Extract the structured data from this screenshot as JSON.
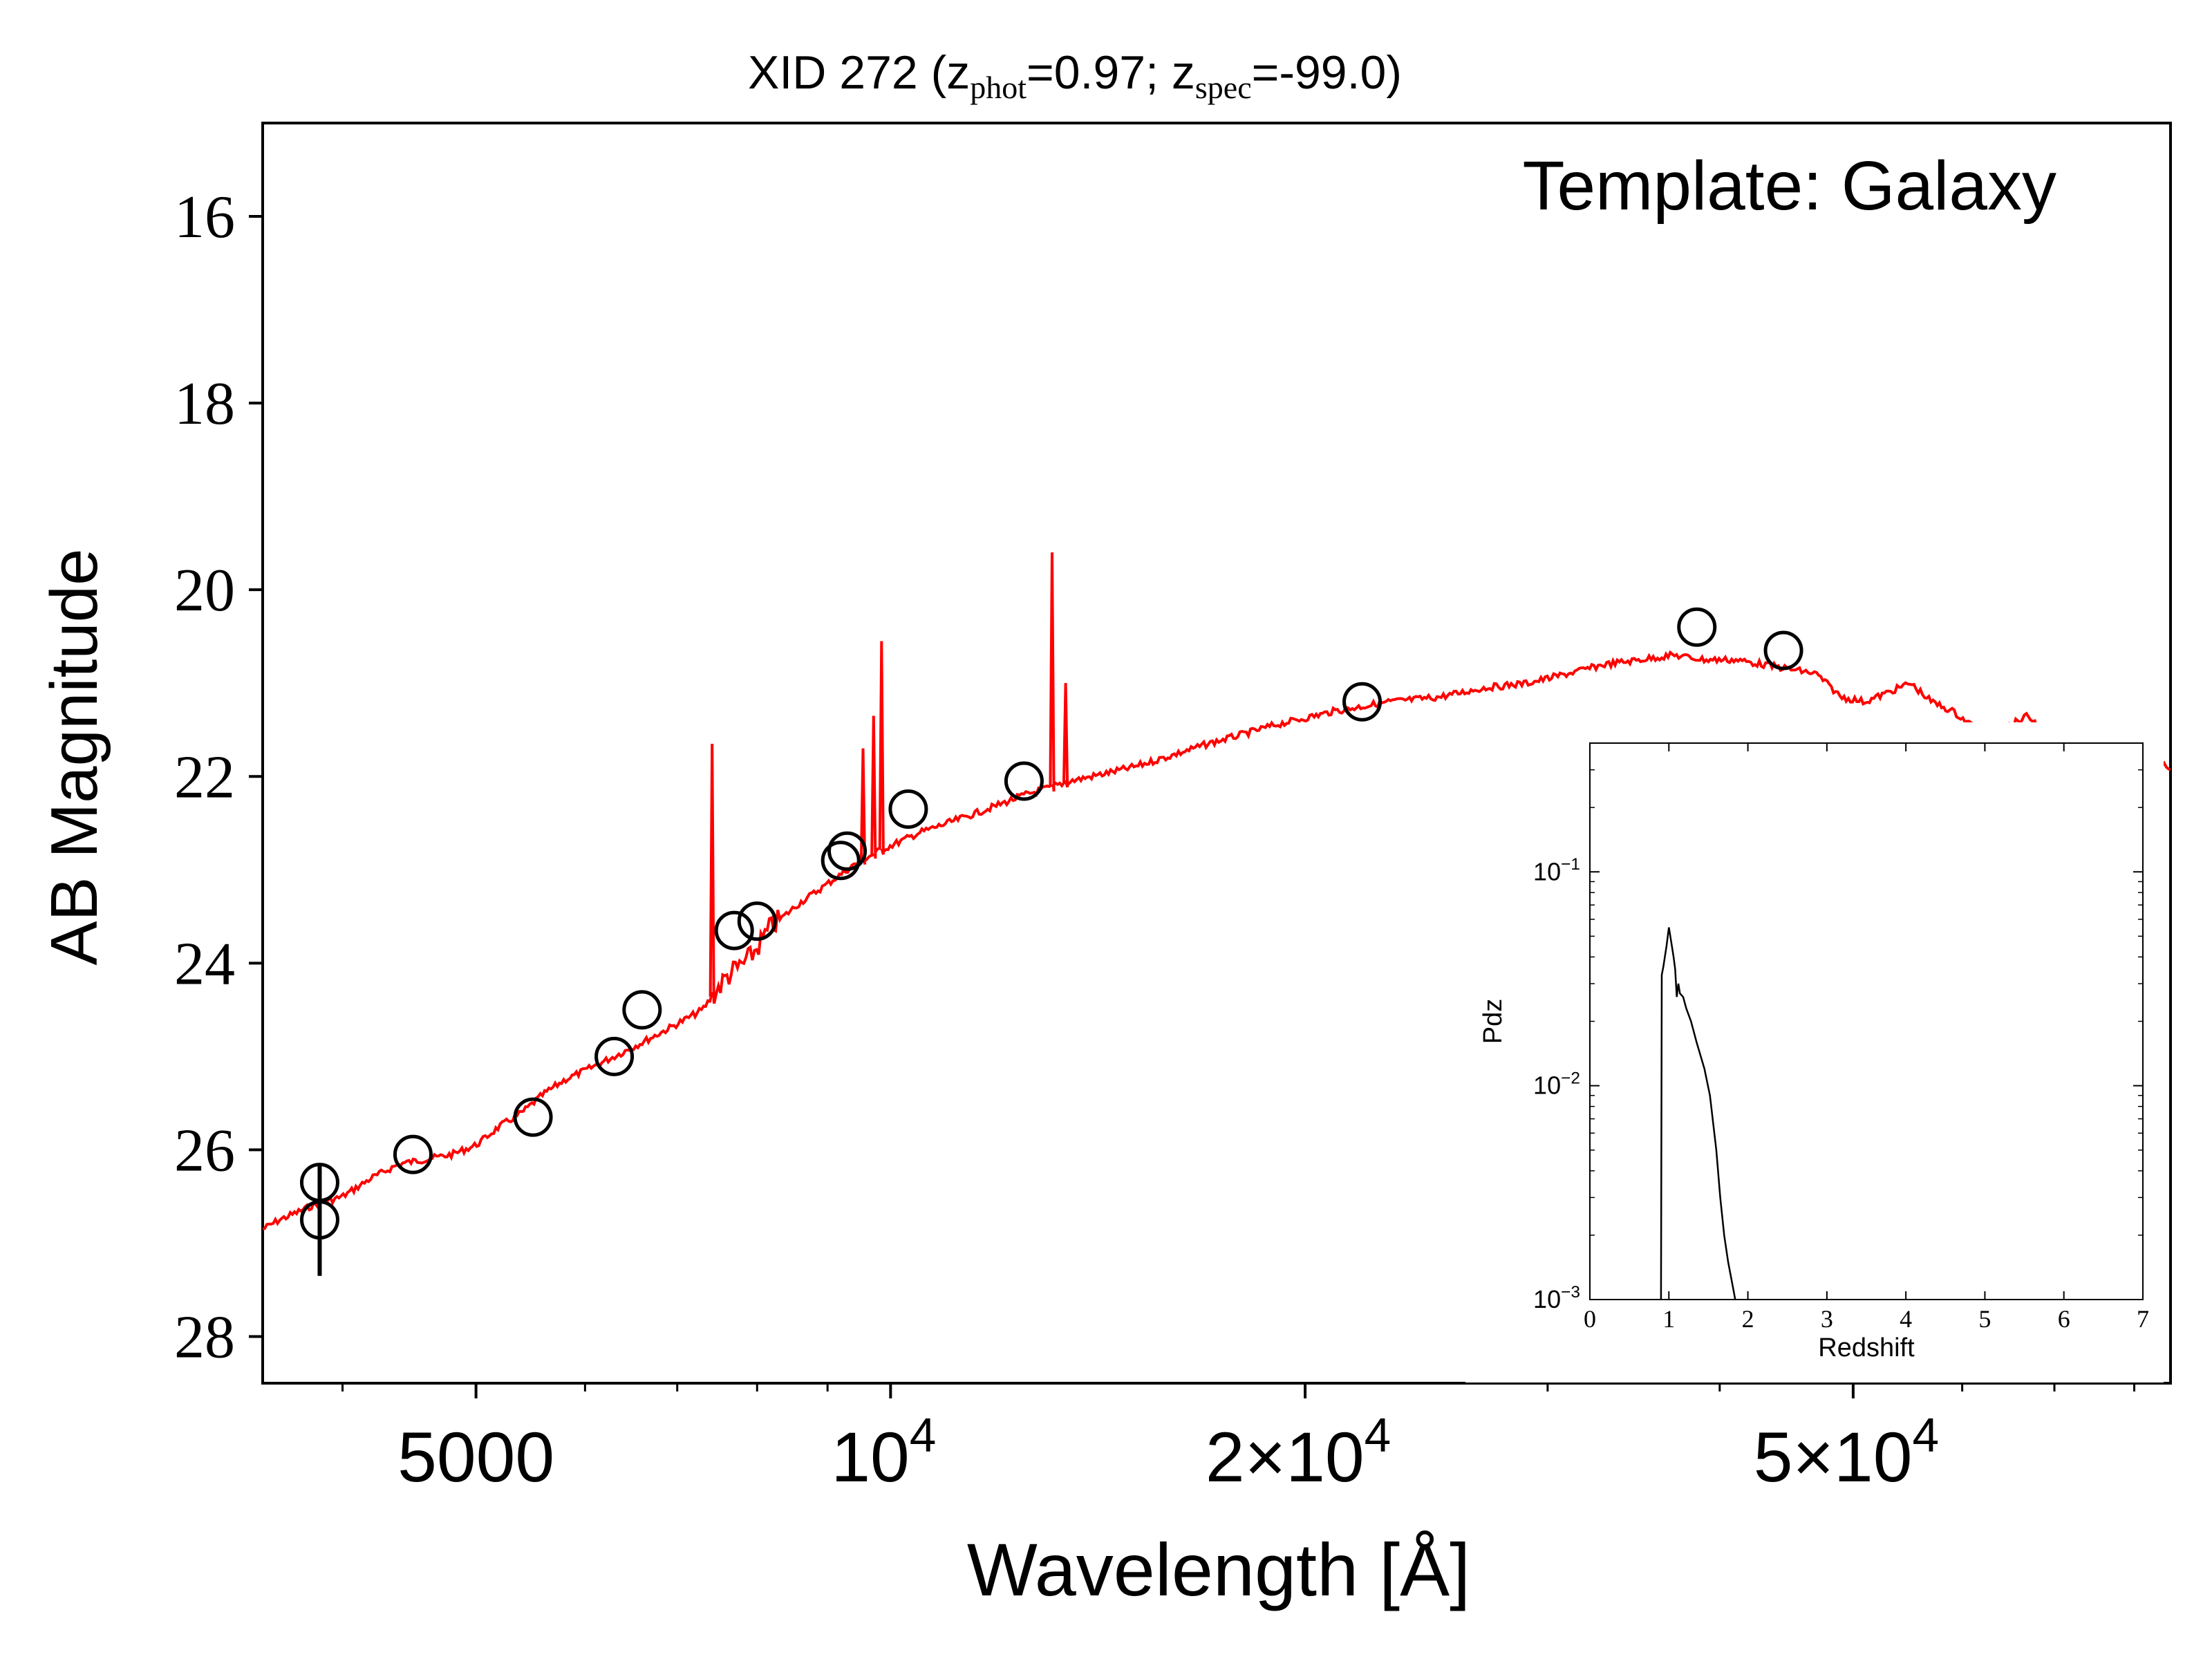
{
  "chart_data": [
    {
      "type": "scatter",
      "title_parts": [
        "XID 272 (z",
        "phot",
        "=0.97; z",
        "spec",
        "=-99.0)"
      ],
      "annotation": "Template: Galaxy",
      "xlabel": "Wavelength [Å]",
      "ylabel": "AB Magnitude",
      "x_scale": "log",
      "xlim": [
        3500,
        85000
      ],
      "ylim": [
        28.5,
        15.0
      ],
      "y_inverted": true,
      "x_ticks": [
        {
          "value": 5000,
          "label": "5000"
        },
        {
          "value": 10000,
          "base": "10",
          "exp": "4"
        },
        {
          "value": 20000,
          "base": "2×10",
          "exp": "4"
        },
        {
          "value": 50000,
          "base": "5×10",
          "exp": "4"
        }
      ],
      "y_ticks": [
        16,
        18,
        20,
        22,
        24,
        26,
        28
      ],
      "colors": {
        "template": "#ff0000",
        "points": "#000000"
      },
      "template_continuum": [
        [
          3500,
          26.85
        ],
        [
          3600,
          26.75
        ],
        [
          3800,
          26.6
        ],
        [
          4000,
          26.5
        ],
        [
          4200,
          26.3
        ],
        [
          4400,
          26.15
        ],
        [
          4600,
          26.1
        ],
        [
          4800,
          26.05
        ],
        [
          5000,
          25.95
        ],
        [
          5200,
          25.75
        ],
        [
          5400,
          25.6
        ],
        [
          5600,
          25.4
        ],
        [
          5800,
          25.25
        ],
        [
          6000,
          25.15
        ],
        [
          6300,
          25.0
        ],
        [
          6600,
          24.85
        ],
        [
          7000,
          24.65
        ],
        [
          7300,
          24.5
        ],
        [
          7600,
          24.15
        ],
        [
          7900,
          23.95
        ],
        [
          8200,
          23.6
        ],
        [
          8600,
          23.35
        ],
        [
          9000,
          23.15
        ],
        [
          9400,
          22.95
        ],
        [
          9800,
          22.8
        ],
        [
          10500,
          22.6
        ],
        [
          11500,
          22.4
        ],
        [
          12500,
          22.2
        ],
        [
          13500,
          22.05
        ],
        [
          15000,
          21.9
        ],
        [
          17000,
          21.65
        ],
        [
          19000,
          21.45
        ],
        [
          21000,
          21.3
        ],
        [
          23000,
          21.2
        ],
        [
          25000,
          21.15
        ],
        [
          27000,
          21.05
        ],
        [
          29000,
          21.0
        ],
        [
          31000,
          20.9
        ],
        [
          33000,
          20.8
        ],
        [
          35000,
          20.75
        ],
        [
          37000,
          20.7
        ],
        [
          39000,
          20.75
        ],
        [
          41000,
          20.75
        ],
        [
          43000,
          20.8
        ],
        [
          45000,
          20.85
        ],
        [
          47000,
          20.9
        ],
        [
          49000,
          21.15
        ],
        [
          51000,
          21.2
        ],
        [
          53000,
          21.1
        ],
        [
          55000,
          21.0
        ],
        [
          57000,
          21.2
        ],
        [
          59000,
          21.3
        ],
        [
          61000,
          21.45
        ],
        [
          63000,
          21.5
        ],
        [
          65000,
          21.45
        ],
        [
          67000,
          21.35
        ],
        [
          69000,
          21.55
        ],
        [
          71000,
          21.65
        ],
        [
          75000,
          21.75
        ],
        [
          80000,
          21.85
        ],
        [
          85000,
          21.9
        ]
      ],
      "emission_lines": [
        {
          "x": 7420,
          "peak": 21.65
        },
        {
          "x": 9550,
          "peak": 21.7
        },
        {
          "x": 9720,
          "peak": 21.35
        },
        {
          "x": 9850,
          "peak": 20.55
        },
        {
          "x": 13100,
          "peak": 19.6
        },
        {
          "x": 13400,
          "peak": 21.0
        }
      ],
      "photometry": [
        {
          "x": 3850,
          "y": 26.35,
          "yerr": 0.0
        },
        {
          "x": 3850,
          "y": 26.75,
          "yerr": 0.6
        },
        {
          "x": 4500,
          "y": 26.05,
          "yerr": 0.0
        },
        {
          "x": 5500,
          "y": 25.65,
          "yerr": 0.0
        },
        {
          "x": 6300,
          "y": 25.0,
          "yerr": 0.0
        },
        {
          "x": 6600,
          "y": 24.5,
          "yerr": 0.0
        },
        {
          "x": 7700,
          "y": 23.65,
          "yerr": 0.0
        },
        {
          "x": 8000,
          "y": 23.55,
          "yerr": 0.0
        },
        {
          "x": 9200,
          "y": 22.9,
          "yerr": 0.0
        },
        {
          "x": 9300,
          "y": 22.8,
          "yerr": 0.0
        },
        {
          "x": 10300,
          "y": 22.35,
          "yerr": 0.0
        },
        {
          "x": 12500,
          "y": 22.05,
          "yerr": 0.0
        },
        {
          "x": 22000,
          "y": 21.2,
          "yerr": 0.0
        },
        {
          "x": 38500,
          "y": 20.4,
          "yerr": 0.0
        },
        {
          "x": 44500,
          "y": 20.65,
          "yerr": 0.0
        }
      ]
    },
    {
      "type": "line",
      "xlabel": "Redshift",
      "ylabel": "Pdz",
      "y_scale": "log",
      "xlim": [
        0,
        7
      ],
      "ylim": [
        0.001,
        0.4
      ],
      "x_ticks": [
        0,
        1,
        2,
        3,
        4,
        5,
        6,
        7
      ],
      "y_ticks": [
        {
          "value": 0.1,
          "base": "10",
          "exp": "−1"
        },
        {
          "value": 0.01,
          "base": "10",
          "exp": "−2"
        },
        {
          "value": 0.001,
          "base": "10",
          "exp": "−3"
        }
      ],
      "x": [
        0.9,
        0.91,
        0.93,
        0.97,
        1.0,
        1.03,
        1.06,
        1.08,
        1.1,
        1.12,
        1.14,
        1.18,
        1.22,
        1.28,
        1.35,
        1.45,
        1.52,
        1.6,
        1.65,
        1.7,
        1.75,
        1.8,
        1.84
      ],
      "values": [
        0.001,
        0.033,
        0.036,
        0.045,
        0.055,
        0.047,
        0.04,
        0.035,
        0.026,
        0.03,
        0.027,
        0.026,
        0.023,
        0.02,
        0.016,
        0.012,
        0.009,
        0.005,
        0.003,
        0.002,
        0.0015,
        0.0012,
        0.001
      ]
    }
  ]
}
